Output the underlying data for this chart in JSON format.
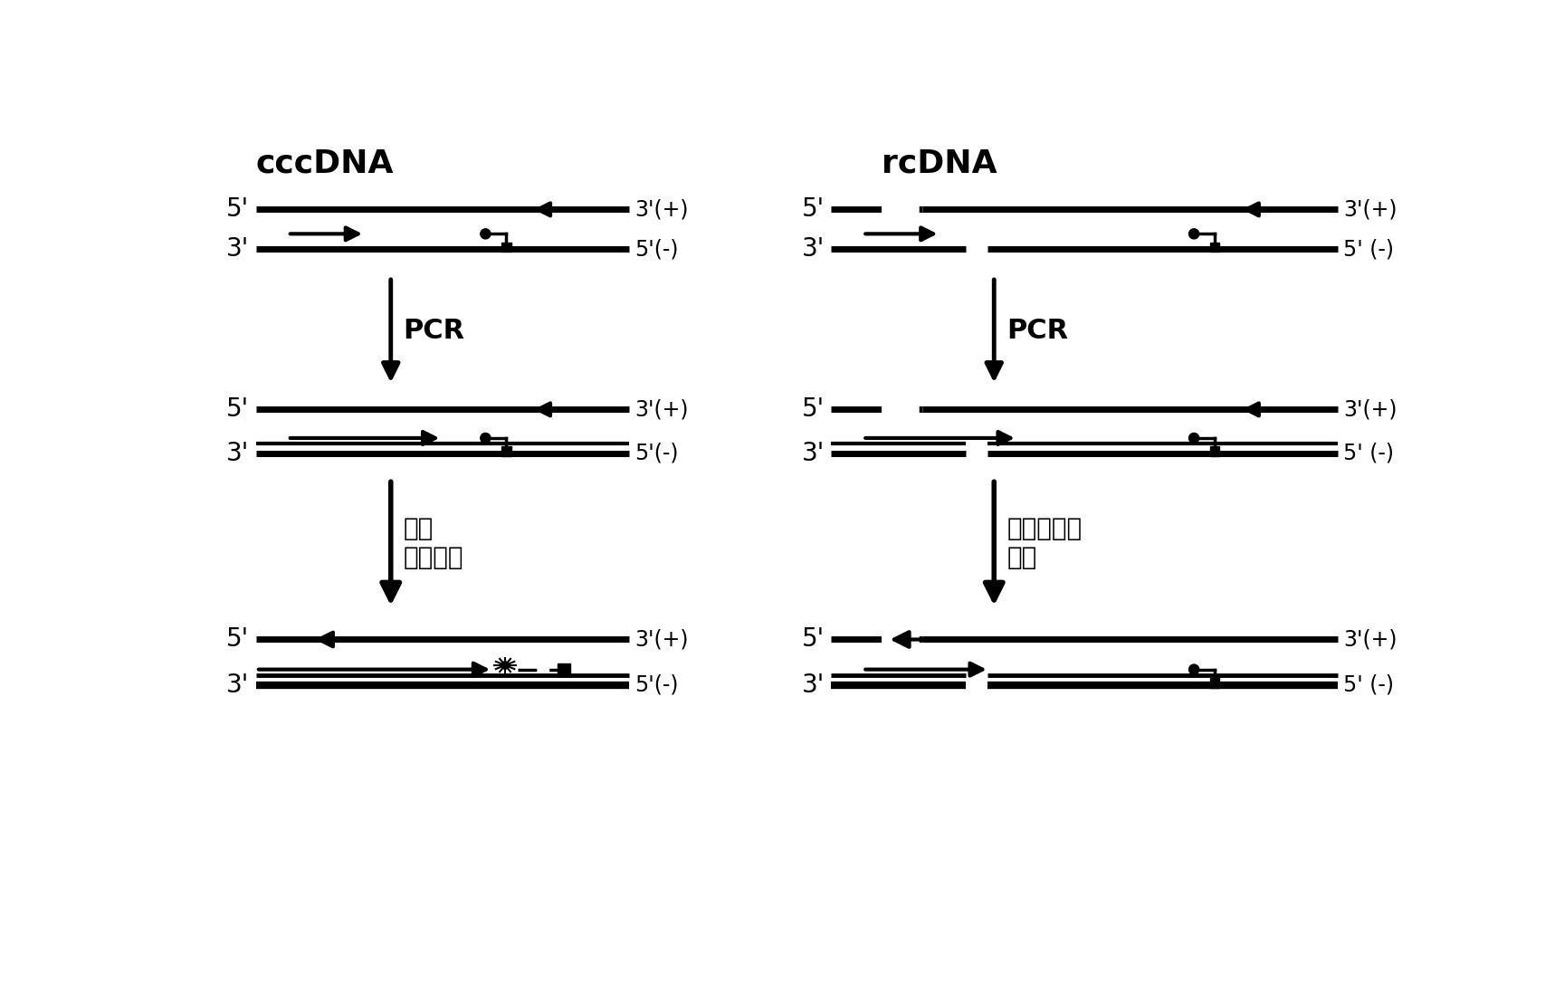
{
  "bg_color": "#ffffff",
  "title_left": "cccDNA",
  "title_right": "rcDNA",
  "pcr_label": "PCR",
  "arrow_left_label": "产生\n荧光信号",
  "arrow_right_label": "无荧光信号\n产生",
  "strand_color": "#000000",
  "lw_strand": 4.0,
  "lw_strand2": 2.5
}
